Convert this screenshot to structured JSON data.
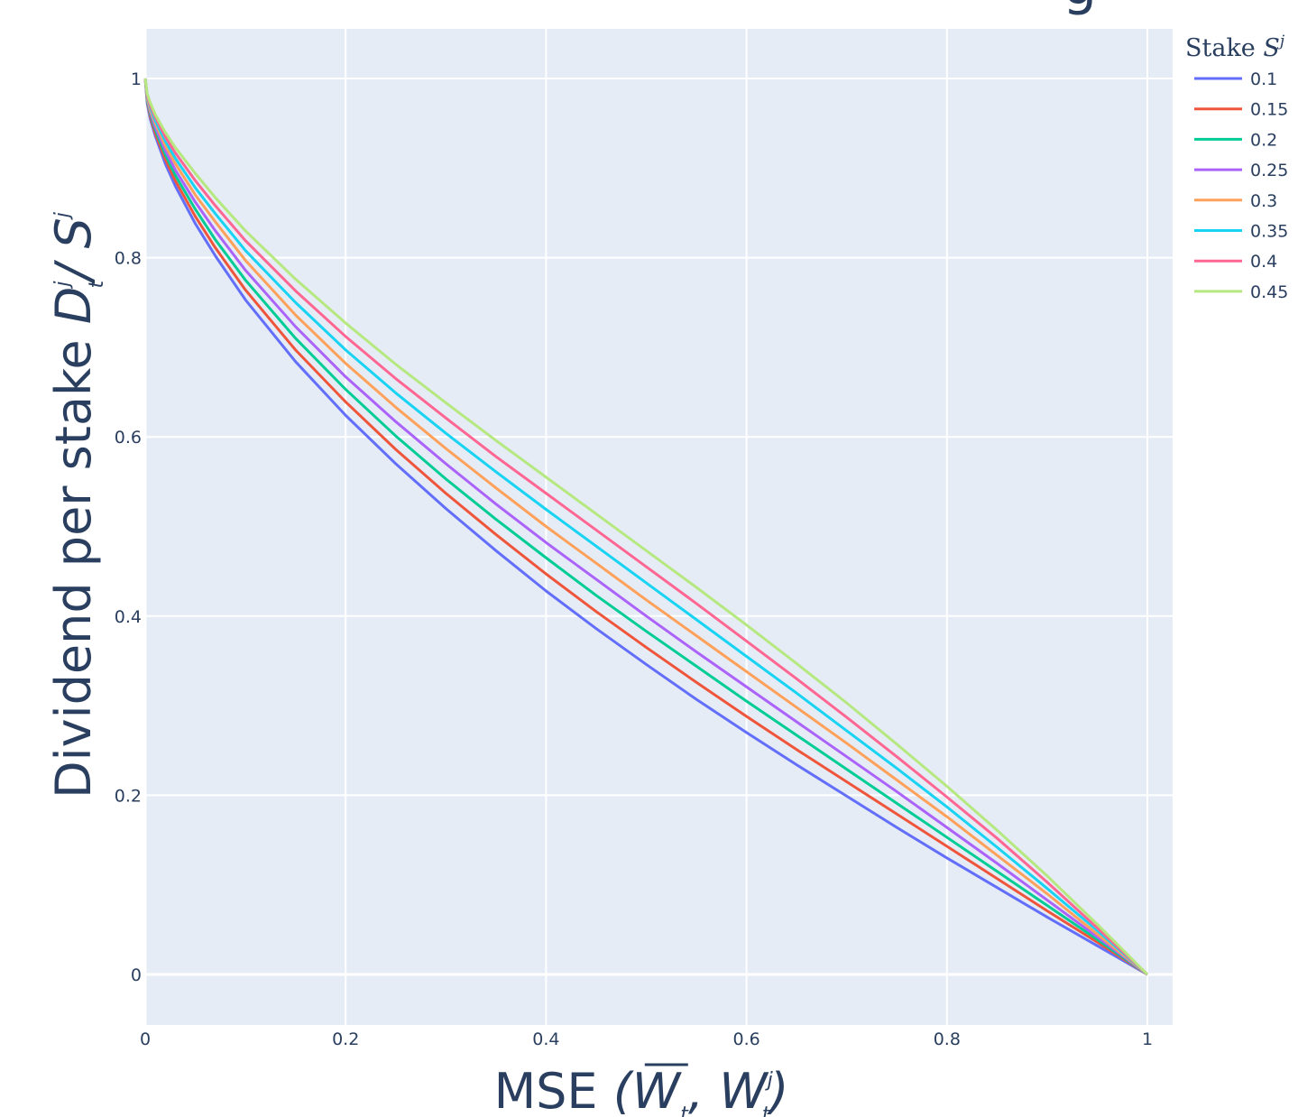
{
  "title_fragment": "g",
  "chart_data": {
    "type": "line",
    "title": "",
    "xlabel": {
      "prefix": "MSE ",
      "open": "(",
      "w1": "W",
      "sub1": "t",
      "comma": ", ",
      "w2": "W",
      "sup2": "j",
      "sub2": "t",
      "close": ")"
    },
    "ylabel": {
      "prefix": "Dividend per stake ",
      "d": "D",
      "d_sup": "j",
      "d_sub": "t",
      "slash": "/ ",
      "s": "S",
      "s_sup": "j"
    },
    "xlim": [
      0,
      1.03
    ],
    "ylim": [
      -0.055,
      1.055
    ],
    "xticks": [
      0,
      0.2,
      0.4,
      0.6,
      0.8,
      1
    ],
    "xtick_labels": [
      "0",
      "0.2",
      "0.4",
      "0.6",
      "0.8",
      "1"
    ],
    "yticks": [
      0,
      0.2,
      0.4,
      0.6,
      0.8,
      1
    ],
    "ytick_labels": [
      "0",
      "0.2",
      "0.4",
      "0.6",
      "0.8",
      "1"
    ],
    "grid": true,
    "background": "#e5ecf6",
    "legend_position": "right",
    "legend_title": {
      "text": "Stake ",
      "sym": "S",
      "sup": "j"
    },
    "x": [
      0,
      0.002,
      0.005,
      0.01,
      0.02,
      0.03,
      0.05,
      0.07,
      0.1,
      0.15,
      0.2,
      0.25,
      0.3,
      0.35,
      0.4,
      0.45,
      0.5,
      0.55,
      0.6,
      0.65,
      0.7,
      0.75,
      0.8,
      0.85,
      0.9,
      0.95,
      1.0
    ],
    "series": [
      {
        "name": "0.1",
        "color": "#636efa",
        "values": [
          1.0,
          0.972,
          0.955,
          0.936,
          0.905,
          0.88,
          0.838,
          0.802,
          0.753,
          0.684,
          0.624,
          0.57,
          0.52,
          0.473,
          0.428,
          0.386,
          0.346,
          0.307,
          0.27,
          0.234,
          0.199,
          0.164,
          0.13,
          0.097,
          0.064,
          0.032,
          0.0
        ]
      },
      {
        "name": "0.15",
        "color": "#ef553b",
        "values": [
          1.0,
          0.974,
          0.958,
          0.939,
          0.91,
          0.886,
          0.846,
          0.811,
          0.764,
          0.697,
          0.639,
          0.586,
          0.537,
          0.491,
          0.447,
          0.405,
          0.365,
          0.326,
          0.288,
          0.251,
          0.215,
          0.179,
          0.143,
          0.107,
          0.071,
          0.036,
          0.0
        ]
      },
      {
        "name": "0.2",
        "color": "#00cc96",
        "values": [
          1.0,
          0.975,
          0.961,
          0.943,
          0.915,
          0.892,
          0.854,
          0.82,
          0.775,
          0.71,
          0.653,
          0.601,
          0.553,
          0.508,
          0.465,
          0.423,
          0.383,
          0.344,
          0.305,
          0.267,
          0.229,
          0.191,
          0.153,
          0.115,
          0.077,
          0.039,
          0.0
        ]
      },
      {
        "name": "0.25",
        "color": "#ab63fa",
        "values": [
          1.0,
          0.977,
          0.963,
          0.946,
          0.92,
          0.898,
          0.862,
          0.83,
          0.786,
          0.723,
          0.667,
          0.617,
          0.57,
          0.525,
          0.482,
          0.441,
          0.4,
          0.36,
          0.321,
          0.282,
          0.243,
          0.204,
          0.164,
          0.124,
          0.083,
          0.042,
          0.0
        ]
      },
      {
        "name": "0.3",
        "color": "#ffa15a",
        "values": [
          1.0,
          0.978,
          0.965,
          0.95,
          0.925,
          0.905,
          0.87,
          0.84,
          0.797,
          0.736,
          0.682,
          0.633,
          0.587,
          0.543,
          0.5,
          0.459,
          0.418,
          0.378,
          0.338,
          0.298,
          0.258,
          0.217,
          0.176,
          0.133,
          0.09,
          0.045,
          0.0
        ]
      },
      {
        "name": "0.35",
        "color": "#19d3f3",
        "values": [
          1.0,
          0.98,
          0.968,
          0.953,
          0.93,
          0.911,
          0.878,
          0.849,
          0.808,
          0.75,
          0.697,
          0.649,
          0.604,
          0.561,
          0.519,
          0.478,
          0.437,
          0.396,
          0.355,
          0.314,
          0.272,
          0.23,
          0.187,
          0.142,
          0.096,
          0.049,
          0.0
        ]
      },
      {
        "name": "0.4",
        "color": "#ff6692",
        "values": [
          1.0,
          0.981,
          0.97,
          0.957,
          0.935,
          0.917,
          0.886,
          0.858,
          0.819,
          0.763,
          0.712,
          0.665,
          0.621,
          0.578,
          0.537,
          0.496,
          0.455,
          0.414,
          0.372,
          0.33,
          0.287,
          0.243,
          0.198,
          0.152,
          0.103,
          0.052,
          0.0
        ]
      },
      {
        "name": "0.45",
        "color": "#b6e880",
        "values": [
          1.0,
          0.983,
          0.973,
          0.96,
          0.94,
          0.923,
          0.894,
          0.867,
          0.83,
          0.776,
          0.727,
          0.681,
          0.638,
          0.596,
          0.555,
          0.514,
          0.473,
          0.432,
          0.39,
          0.347,
          0.303,
          0.257,
          0.21,
          0.161,
          0.11,
          0.056,
          0.0
        ]
      }
    ]
  }
}
